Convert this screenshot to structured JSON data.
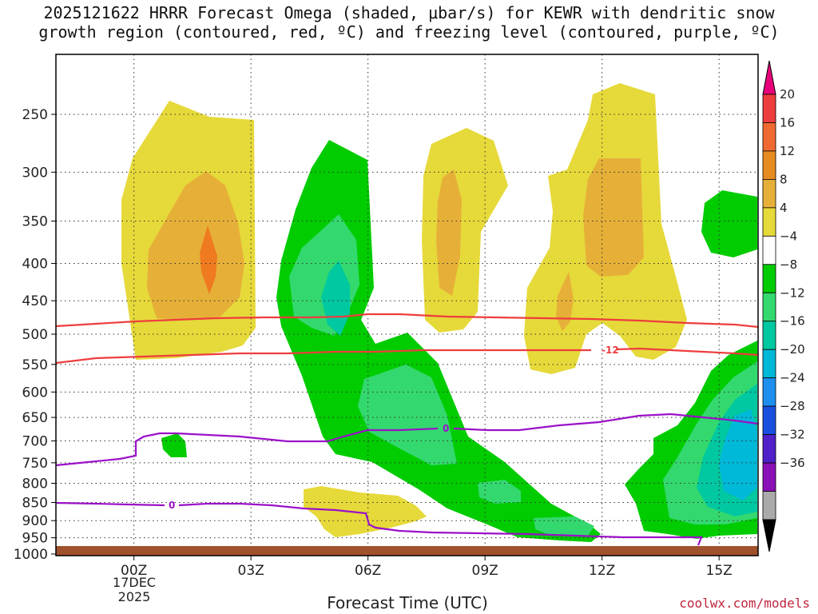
{
  "title_line1": "2025121622 HRRR Forecast Omega (shaded, μbar/s) for KEWR with dendritic snow",
  "title_line2": "growth region (contoured, red, ºC) and freezing level (contoured, purple, ºC)",
  "credit": "coolwx.com/models",
  "chart_data": {
    "type": "heatmap",
    "title": "2025121622 HRRR Forecast Omega (shaded, μbar/s) for KEWR with dendritic snow growth region (contoured, red, ºC) and freezing level (contoured, purple, ºC)",
    "xlabel": "Forecast Time (UTC)",
    "ylabel": "",
    "x_ticks": [
      "00Z",
      "03Z",
      "06Z",
      "09Z",
      "12Z",
      "15Z"
    ],
    "x_date_label": [
      "17DEC",
      "2025"
    ],
    "xlim_hours": [
      -2,
      16
    ],
    "y_ticks": [
      250,
      300,
      350,
      400,
      450,
      500,
      550,
      600,
      650,
      700,
      750,
      800,
      850,
      900,
      950,
      1000
    ],
    "ylim": [
      200,
      1020
    ],
    "y_scale": "log-pressure",
    "grid": true,
    "colorbar": {
      "labels": [
        "20",
        "16",
        "12",
        "8",
        "4",
        "−4",
        "−8",
        "−12",
        "−16",
        "−20",
        "−24",
        "−28",
        "−32",
        "−36"
      ],
      "colors": [
        "#e8007a",
        "#ee3d3d",
        "#ef6a30",
        "#e68a22",
        "#e6b038",
        "#e6d93a",
        "#ffffff",
        "#00cc00",
        "#33d96e",
        "#00c8a0",
        "#00b8d8",
        "#1e8fef",
        "#1a4fe0",
        "#5020c8",
        "#8a10b8",
        "#aaaaaa",
        "#000000"
      ]
    },
    "contours": [
      {
        "name": "dendritic growth region",
        "color": "#ee3d3d",
        "levels": [
          "-12"
        ]
      },
      {
        "name": "freezing level",
        "color": "#9b10c8",
        "levels": [
          "0"
        ]
      }
    ]
  }
}
